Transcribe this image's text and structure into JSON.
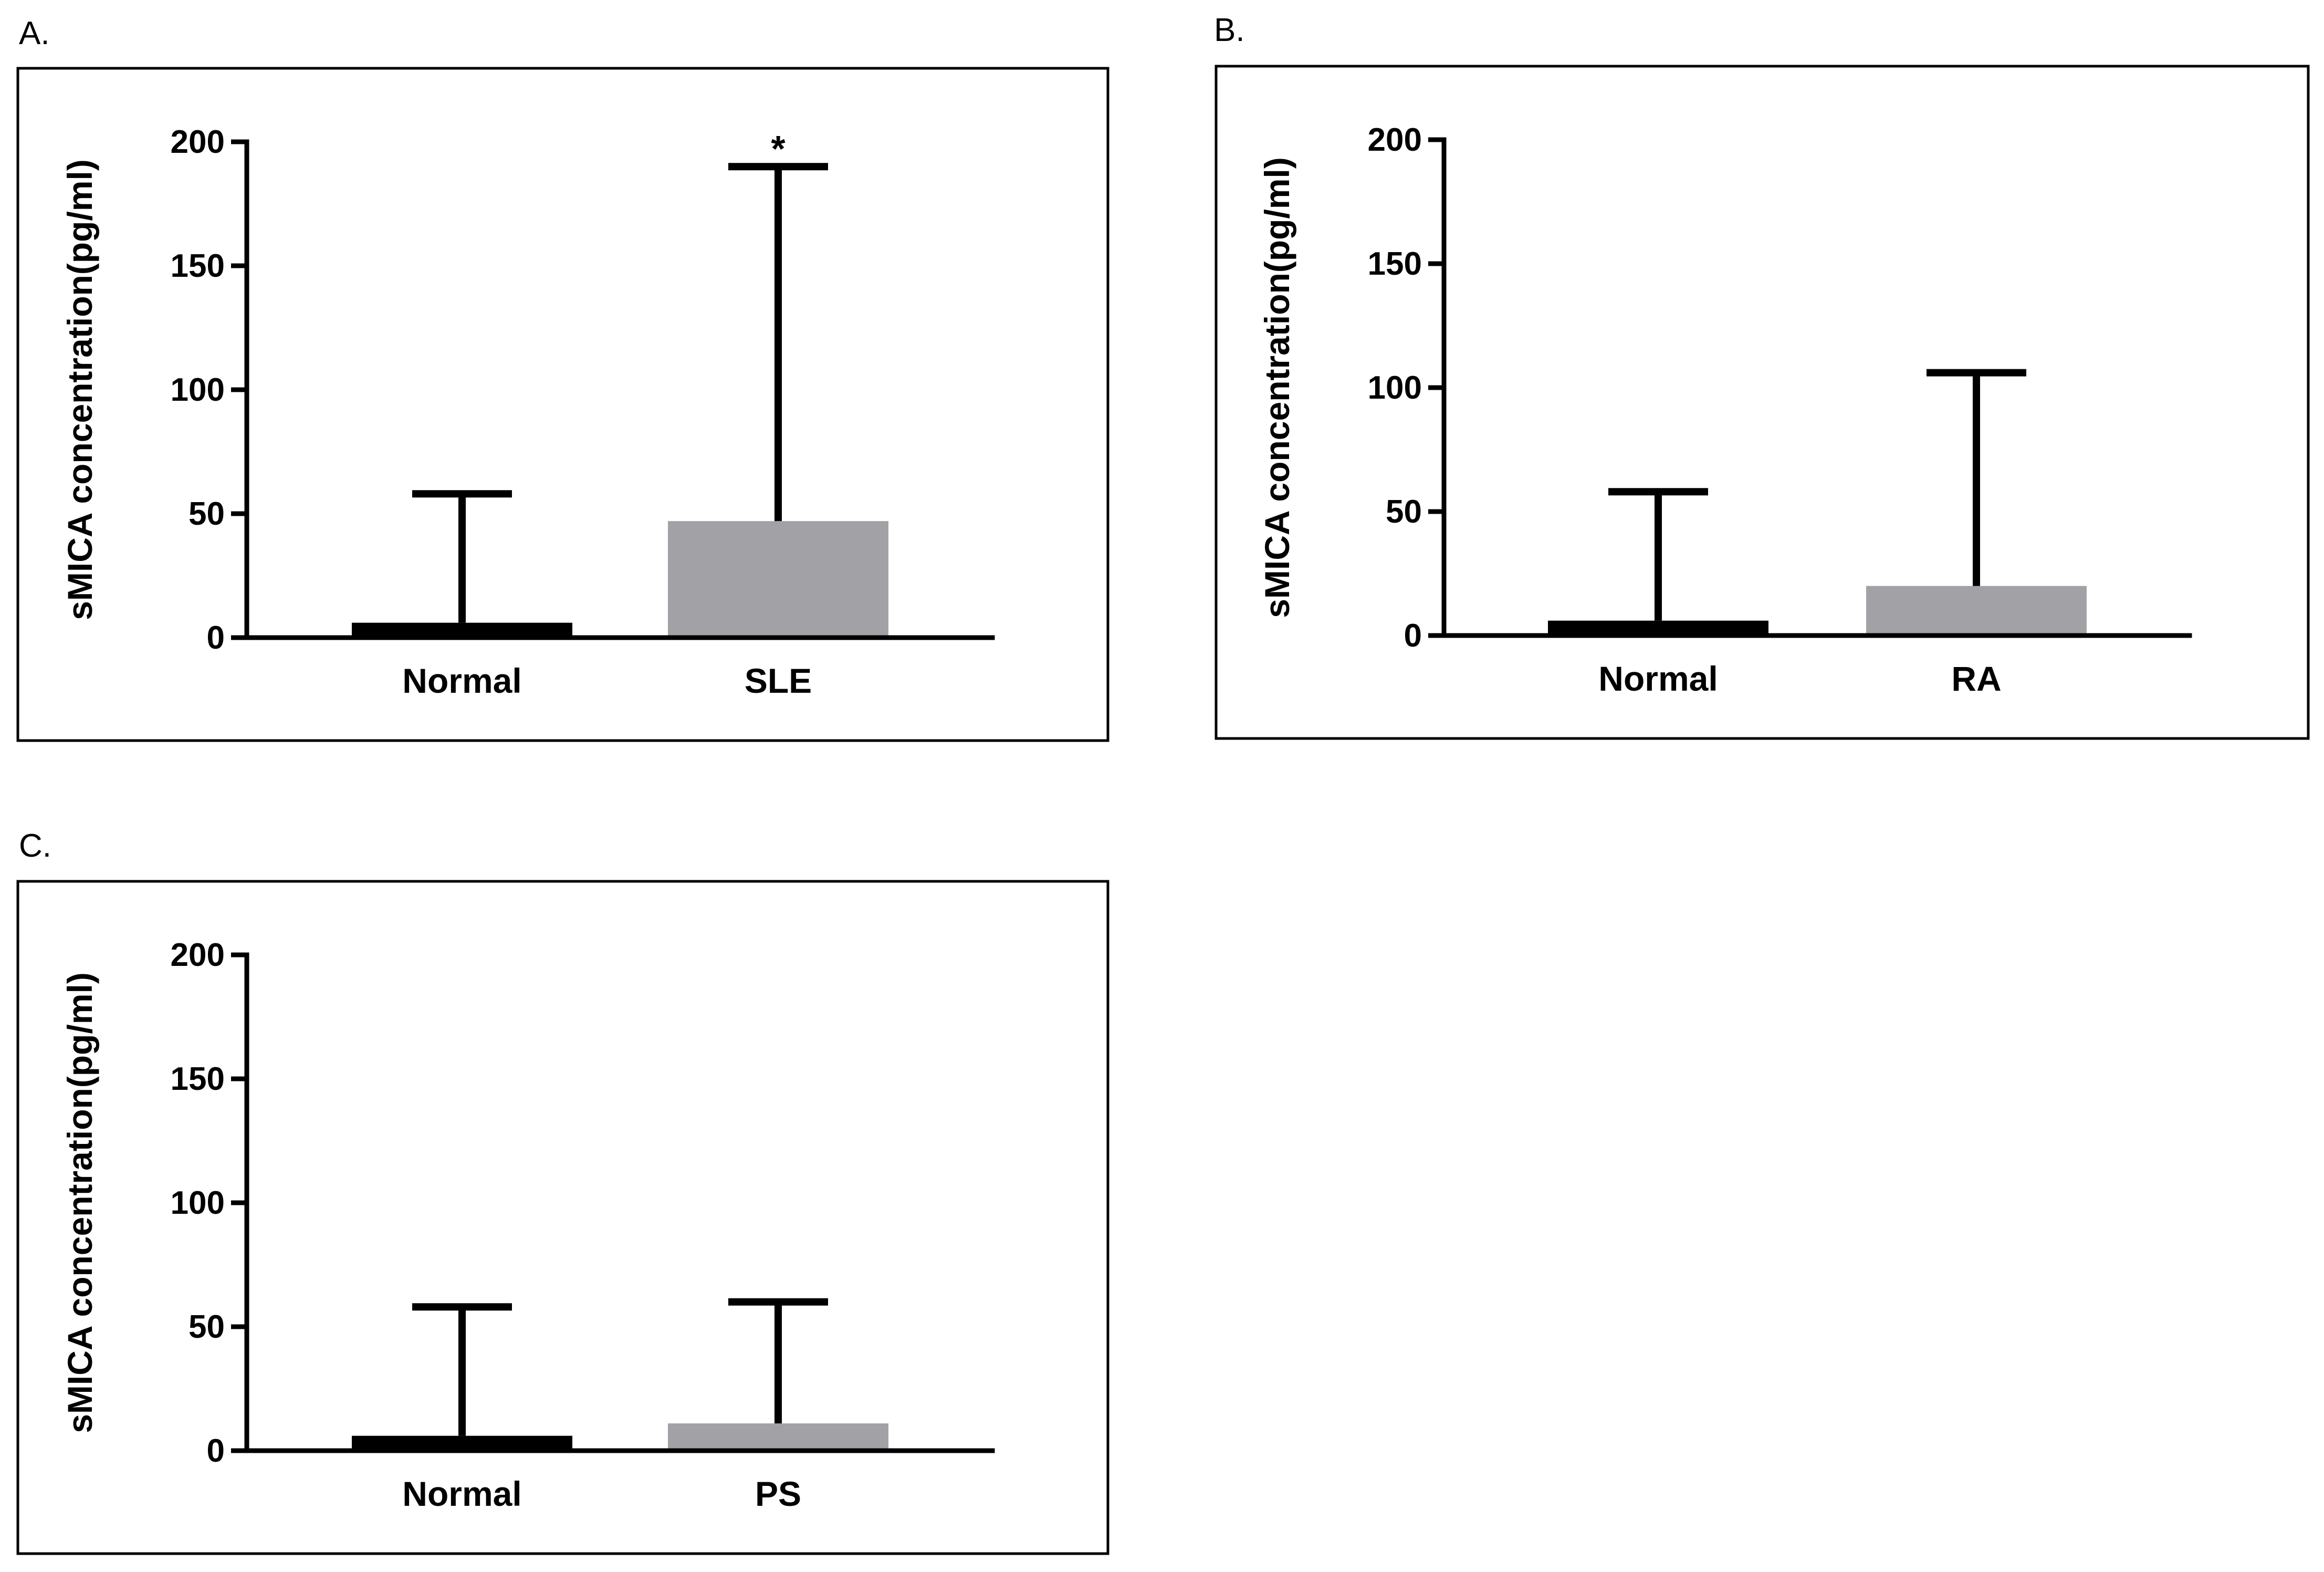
{
  "chart_data": [
    {
      "type": "bar",
      "panel_label": "A.",
      "ylabel": "sMICA concentration(pg/ml)",
      "ylim": [
        0,
        200
      ],
      "yticks": [
        0,
        50,
        100,
        150,
        200
      ],
      "categories": [
        "Normal",
        "SLE"
      ],
      "values": [
        6,
        47
      ],
      "error_upper": [
        58,
        190
      ],
      "bar_colors": [
        "#000000",
        "#a2a2a6"
      ],
      "annotations": [
        {
          "category": "SLE",
          "text": "*"
        }
      ]
    },
    {
      "type": "bar",
      "panel_label": "B.",
      "ylabel": "sMICA concentration(pg/ml)",
      "ylim": [
        0,
        200
      ],
      "yticks": [
        0,
        50,
        100,
        150,
        200
      ],
      "categories": [
        "Normal",
        "RA"
      ],
      "values": [
        6,
        20
      ],
      "error_upper": [
        58,
        106
      ],
      "bar_colors": [
        "#000000",
        "#a2a2a6"
      ],
      "annotations": []
    },
    {
      "type": "bar",
      "panel_label": "C.",
      "ylabel": "sMICA concentration(pg/ml)",
      "ylim": [
        0,
        200
      ],
      "yticks": [
        0,
        50,
        100,
        150,
        200
      ],
      "categories": [
        "Normal",
        "PS"
      ],
      "values": [
        6,
        11
      ],
      "error_upper": [
        58,
        60
      ],
      "bar_colors": [
        "#000000",
        "#a2a2a6"
      ],
      "annotations": []
    }
  ]
}
